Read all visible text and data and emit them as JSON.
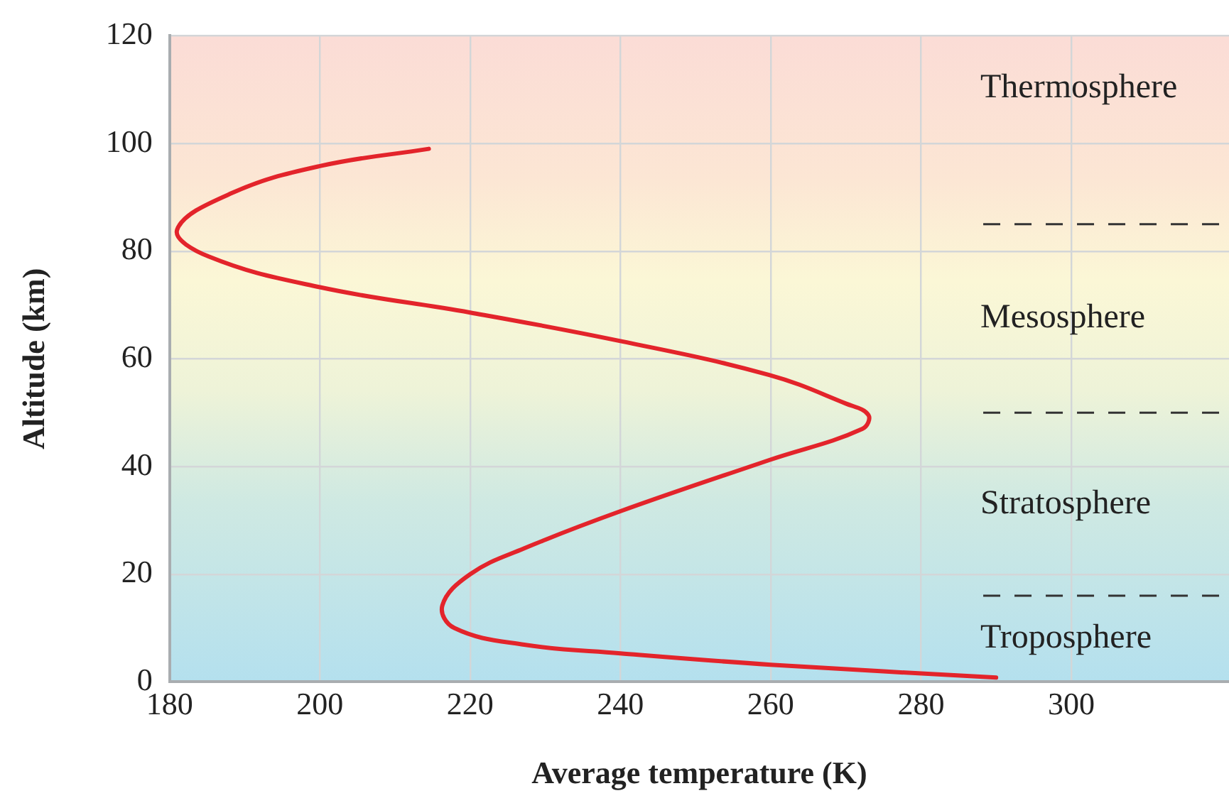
{
  "chart_data": {
    "type": "line",
    "xlabel": "Average temperature (K)",
    "ylabel": "Altitude (km)",
    "x": [
      290,
      260,
      240,
      227.2,
      217.9,
      216.3,
      220,
      227.2,
      240,
      259.8,
      272.2,
      273,
      270,
      259.8,
      240,
      220,
      200,
      185.2,
      181,
      188.3,
      200,
      214.5
    ],
    "values": [
      0.8,
      3.2,
      5.3,
      6.9,
      10,
      14.2,
      20,
      24.8,
      31.7,
      41.2,
      47,
      49.6,
      51.7,
      57,
      63.3,
      68.6,
      73.3,
      79,
      84,
      90.8,
      95.8,
      99
    ],
    "color": "#e3242b",
    "xlim": [
      180,
      321
    ],
    "xticks": [
      180,
      200,
      220,
      240,
      260,
      280,
      300
    ],
    "ylim": [
      0,
      120
    ],
    "yticks": [
      0,
      20,
      40,
      60,
      80,
      100,
      120
    ],
    "grid": true,
    "legend": false,
    "marker": "none",
    "line_style": "solid",
    "ref_lines": [
      {
        "axis": "y",
        "value": 16,
        "color": "#333333",
        "line_style": "dashed"
      },
      {
        "axis": "y",
        "value": 50,
        "color": "#333333",
        "line_style": "dashed"
      },
      {
        "axis": "y",
        "value": 85,
        "color": "#333333",
        "line_style": "dashed"
      }
    ],
    "annotations": [
      "Thermosphere",
      "Mesosphere",
      "Stratosphere",
      "Troposphere"
    ]
  }
}
